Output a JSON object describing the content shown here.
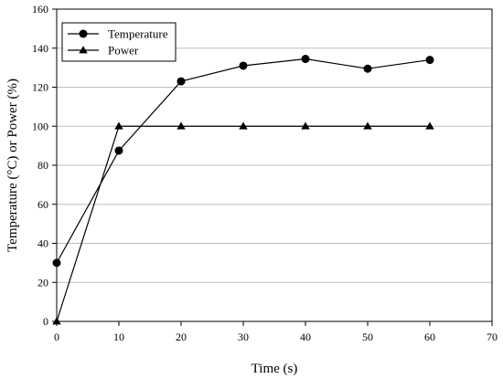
{
  "chart_data": {
    "type": "line",
    "xlabel": "Time (s)",
    "ylabel": "Temperature (°C) or Power (%)",
    "xlim": [
      0,
      70
    ],
    "ylim": [
      0,
      160
    ],
    "xticks": [
      0,
      10,
      20,
      30,
      40,
      50,
      60,
      70
    ],
    "yticks": [
      0,
      20,
      40,
      60,
      80,
      100,
      120,
      140,
      160
    ],
    "grid": "horizontal",
    "legend_position": "top-left",
    "series": [
      {
        "name": "Temperature",
        "marker": "circle",
        "color": "#000000",
        "points": [
          [
            0,
            30
          ],
          [
            10,
            87.5
          ],
          [
            20,
            123
          ],
          [
            30,
            131
          ],
          [
            40,
            134.5
          ],
          [
            50,
            129.5
          ],
          [
            60,
            134
          ]
        ]
      },
      {
        "name": "Power",
        "marker": "triangle",
        "color": "#000000",
        "points": [
          [
            0,
            0
          ],
          [
            10,
            100
          ],
          [
            20,
            100
          ],
          [
            30,
            100
          ],
          [
            40,
            100
          ],
          [
            50,
            100
          ],
          [
            60,
            100
          ]
        ]
      }
    ]
  }
}
